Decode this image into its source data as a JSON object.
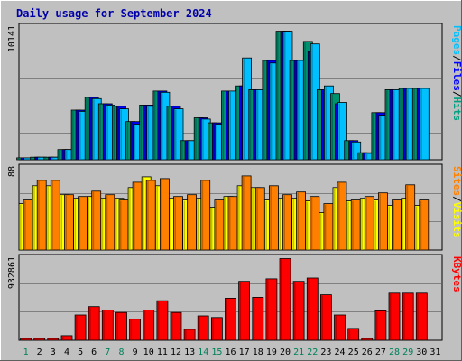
{
  "chart_data": {
    "title": "Daily usage for September 2024",
    "type": "bar",
    "categories": [
      "1",
      "2",
      "3",
      "4",
      "5",
      "6",
      "7",
      "8",
      "9",
      "10",
      "11",
      "12",
      "13",
      "14",
      "15",
      "16",
      "17",
      "18",
      "19",
      "20",
      "21",
      "22",
      "23",
      "24",
      "25",
      "26",
      "27",
      "28",
      "29",
      "30",
      "31"
    ],
    "weekend_days": [
      "1",
      "7",
      "8",
      "14",
      "15",
      "21",
      "22",
      "28",
      "29"
    ],
    "panels": [
      {
        "name": "pages-files-hits",
        "max_label": "10141",
        "ylim": [
          0,
          10141
        ],
        "side_labels": [
          {
            "text": "Pages",
            "color": "#00c0ff"
          },
          {
            "text": "/",
            "color": "#000000"
          },
          {
            "text": "Files",
            "color": "#0000ff"
          },
          {
            "text": "/",
            "color": "#000000"
          },
          {
            "text": "Hits",
            "color": "#00a080"
          }
        ],
        "series": [
          {
            "name": "Hits",
            "color": "#00926f",
            "values": [
              150,
              200,
              200,
              800,
              3900,
              4900,
              4400,
              4200,
              3000,
              4300,
              5400,
              4200,
              1500,
              3300,
              2900,
              5400,
              5800,
              5500,
              7800,
              10100,
              7800,
              9300,
              5500,
              5200,
              1500,
              550,
              3700,
              5500,
              5600,
              5600,
              0
            ]
          },
          {
            "name": "Files",
            "color": "#0000ff",
            "values": [
              150,
              200,
              200,
              800,
              3900,
              4900,
              4400,
              4200,
              3000,
              4300,
              5400,
              4200,
              1500,
              3300,
              2900,
              5400,
              5800,
              5500,
              7800,
              10100,
              7800,
              8500,
              5500,
              4400,
              1500,
              550,
              3700,
              5500,
              5600,
              5600,
              0
            ]
          },
          {
            "name": "Pages",
            "color": "#00c0ff",
            "values": [
              150,
              200,
              200,
              800,
              3800,
              4800,
              4300,
              4000,
              2800,
              4200,
              5300,
              4000,
              1500,
              3200,
              2800,
              5400,
              8000,
              5500,
              7600,
              10100,
              7800,
              9100,
              5800,
              4500,
              1400,
              500,
              3500,
              5500,
              5600,
              5600,
              0
            ]
          }
        ]
      },
      {
        "name": "visits-sites",
        "max_label": "88",
        "ylim": [
          0,
          88
        ],
        "side_labels": [
          {
            "text": "Sites",
            "color": "#ff8000"
          },
          {
            "text": "/",
            "color": "#000000"
          },
          {
            "text": "Visits",
            "color": "#ffff00"
          }
        ],
        "series": [
          {
            "name": "Visits",
            "color": "#ffff00",
            "values": [
              52,
              72,
              72,
              62,
              58,
              60,
              58,
              58,
              70,
              82,
              72,
              58,
              56,
              58,
              48,
              60,
              72,
              70,
              56,
              58,
              58,
              55,
              42,
              70,
              55,
              58,
              56,
              50,
              58,
              50,
              0
            ]
          },
          {
            "name": "Sites",
            "color": "#ff8000",
            "values": [
              56,
              78,
              78,
              62,
              60,
              66,
              62,
              56,
              76,
              78,
              80,
              60,
              62,
              78,
              56,
              60,
              83,
              70,
              72,
              62,
              65,
              60,
              52,
              76,
              56,
              60,
              64,
              56,
              73,
              56,
              0
            ]
          }
        ]
      },
      {
        "name": "kbytes",
        "max_label": "932861",
        "ylim": [
          0,
          932861
        ],
        "side_labels": [
          {
            "text": "KBytes",
            "color": "#ff0000"
          }
        ],
        "series": [
          {
            "name": "KBytes",
            "color": "#ff0000",
            "values": [
              10000,
              10000,
              10000,
              55000,
              300000,
              400000,
              360000,
              330000,
              250000,
              360000,
              470000,
              330000,
              130000,
              290000,
              270000,
              500000,
              700000,
              510000,
              730000,
              970000,
              700000,
              740000,
              540000,
              300000,
              140000,
              20000,
              350000,
              560000,
              560000,
              560000,
              0
            ]
          }
        ]
      }
    ]
  }
}
